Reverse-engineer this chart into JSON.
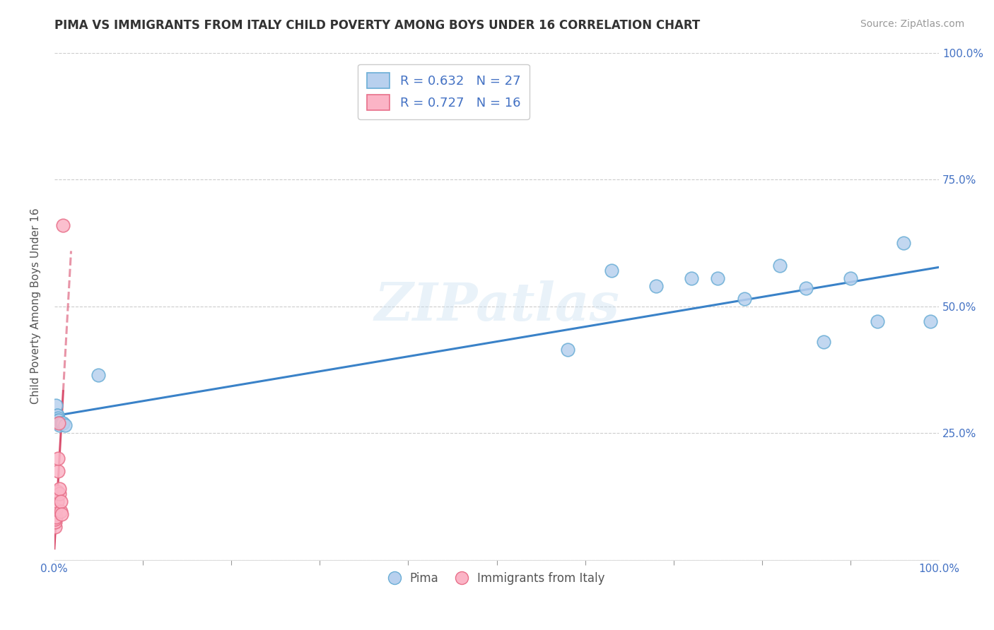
{
  "title": "PIMA VS IMMIGRANTS FROM ITALY CHILD POVERTY AMONG BOYS UNDER 16 CORRELATION CHART",
  "source": "Source: ZipAtlas.com",
  "ylabel": "Child Poverty Among Boys Under 16",
  "xlim": [
    0.0,
    1.0
  ],
  "ylim": [
    0.0,
    1.0
  ],
  "pima_x": [
    0.002,
    0.003,
    0.003,
    0.004,
    0.004,
    0.005,
    0.005,
    0.006,
    0.007,
    0.008,
    0.009,
    0.01,
    0.012,
    0.05,
    0.58,
    0.63,
    0.68,
    0.72,
    0.75,
    0.78,
    0.82,
    0.85,
    0.87,
    0.9,
    0.93,
    0.96,
    0.99
  ],
  "pima_y": [
    0.305,
    0.285,
    0.285,
    0.28,
    0.275,
    0.275,
    0.27,
    0.265,
    0.27,
    0.27,
    0.27,
    0.27,
    0.265,
    0.365,
    0.415,
    0.57,
    0.54,
    0.555,
    0.555,
    0.515,
    0.58,
    0.535,
    0.43,
    0.555,
    0.47,
    0.625,
    0.47
  ],
  "italy_x": [
    0.001,
    0.001,
    0.001,
    0.002,
    0.002,
    0.003,
    0.003,
    0.004,
    0.004,
    0.005,
    0.006,
    0.006,
    0.007,
    0.007,
    0.008,
    0.01
  ],
  "italy_y": [
    0.065,
    0.075,
    0.08,
    0.085,
    0.1,
    0.115,
    0.135,
    0.175,
    0.2,
    0.27,
    0.13,
    0.14,
    0.095,
    0.115,
    0.09,
    0.66
  ],
  "pima_color": "#b8d0ee",
  "pima_edge_color": "#6baed6",
  "italy_color": "#fbb4c6",
  "italy_edge_color": "#e8708a",
  "trend_blue": "#3a82c8",
  "trend_pink": "#d94f6e",
  "pima_R": "0.632",
  "pima_N": "27",
  "italy_R": "0.727",
  "italy_N": "16",
  "legend_color": "#4472c4",
  "watermark": "ZIPatlas",
  "background_color": "#ffffff",
  "grid_color": "#cccccc",
  "tick_color": "#4472c4",
  "ylabel_color": "#555555",
  "title_color": "#333333",
  "source_color": "#999999"
}
